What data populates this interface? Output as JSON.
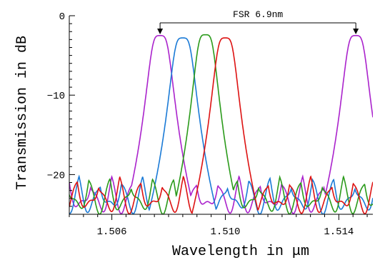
{
  "chart_data": {
    "type": "line",
    "title": "",
    "xlabel": "Wavelength in μm",
    "ylabel": "Transmission in dB",
    "xlim": [
      1.5045,
      1.5152
    ],
    "ylim": [
      -25,
      0
    ],
    "xticks": [
      1.506,
      1.51,
      1.514
    ],
    "xtick_labels": [
      "1.506",
      "1.510",
      "1.514"
    ],
    "yticks": [
      0,
      -10,
      -20
    ],
    "ytick_labels": [
      "0",
      "−10",
      "−20"
    ],
    "grid": false,
    "legend": "none",
    "annotation": {
      "text": "FSR 6.9nm",
      "x_start": 1.5077,
      "x_end": 1.5146,
      "y": 0
    },
    "series": [
      {
        "color": "#aa22cc",
        "peaks": [
          [
            1.5077,
            -2.5
          ],
          [
            1.5146,
            -2.5
          ]
        ],
        "width": 0.00034,
        "floor": -21.5
      },
      {
        "color": "#1a7ad6",
        "peaks": [
          [
            1.5085,
            -2.8
          ]
        ],
        "width": 0.00034,
        "floor": -21.5
      },
      {
        "color": "#2a9a1a",
        "peaks": [
          [
            1.5093,
            -2.4
          ]
        ],
        "width": 0.00032,
        "floor": -22
      },
      {
        "color": "#dd1111",
        "peaks": [
          [
            1.51,
            -2.8
          ]
        ],
        "width": 0.00033,
        "floor": -22
      }
    ]
  }
}
